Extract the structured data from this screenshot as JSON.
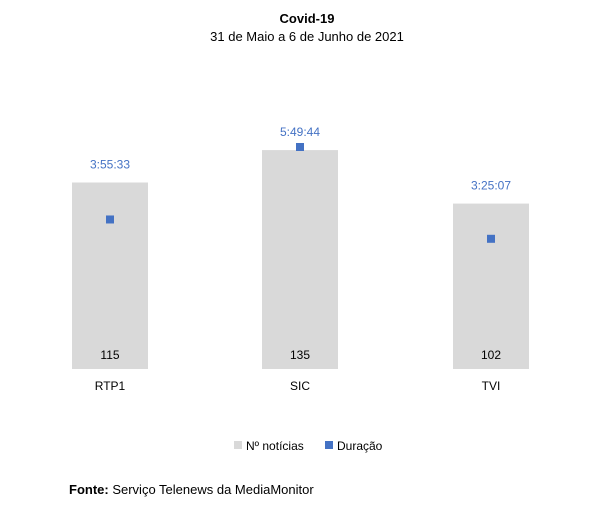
{
  "chart_data": {
    "type": "bar",
    "title": "Covid-19",
    "subtitle": "31 de Maio a 6 de Junho de 2021",
    "categories": [
      "RTP1",
      "SIC",
      "TVI"
    ],
    "series": [
      {
        "name": "Nº notícias",
        "kind": "bar",
        "values": [
          115,
          135,
          102
        ],
        "color": "#d9d9d9"
      },
      {
        "name": "Duração",
        "kind": "marker",
        "values": [
          "3:55:33",
          "5:49:44",
          "3:25:07"
        ],
        "seconds": [
          14133,
          20984,
          12307
        ],
        "color": "#4472c4"
      }
    ],
    "legend_position": "bottom",
    "grid": false
  },
  "source": {
    "label": "Fonte:",
    "text": " Serviço Telenews da MediaMonitor"
  }
}
